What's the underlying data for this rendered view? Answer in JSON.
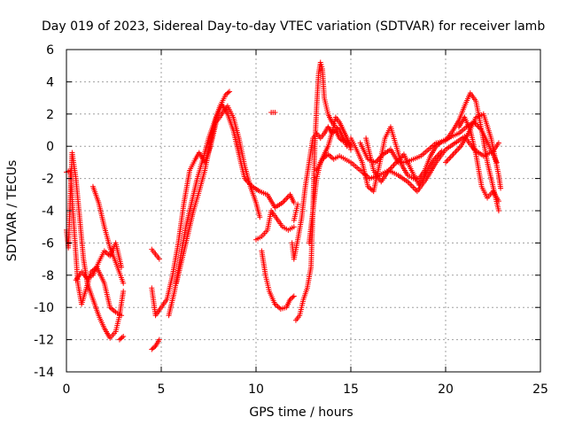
{
  "chart_data": {
    "type": "scatter",
    "title": "Day 019 of 2023, Sidereal Day-to-day VTEC variation (SDTVAR) for receiver lamb",
    "xlabel": "GPS time / hours",
    "ylabel": "SDTVAR / TECUs",
    "xlim": [
      0,
      25
    ],
    "ylim": [
      -14,
      6
    ],
    "xticks": [
      0,
      5,
      10,
      15,
      20,
      25
    ],
    "yticks": [
      -14,
      -12,
      -10,
      -8,
      -6,
      -4,
      -2,
      0,
      2,
      4,
      6
    ],
    "grid": true,
    "marker": "+",
    "color": "#ff0000",
    "series": [
      {
        "name": "track-1",
        "points": [
          [
            0.0,
            -1.6
          ],
          [
            0.2,
            -1.5
          ],
          [
            0.4,
            -5.0
          ],
          [
            0.6,
            -8.5
          ],
          [
            0.8,
            -9.8
          ],
          [
            1.0,
            -9.0
          ],
          [
            1.3,
            -7.8
          ],
          [
            1.6,
            -7.5
          ],
          [
            2.0,
            -8.5
          ],
          [
            2.3,
            -10.0
          ],
          [
            2.6,
            -10.3
          ],
          [
            2.9,
            -10.5
          ]
        ]
      },
      {
        "name": "track-2",
        "points": [
          [
            0.0,
            -5.2
          ],
          [
            0.1,
            -6.3
          ],
          [
            0.3,
            -0.4
          ],
          [
            0.5,
            -2.0
          ],
          [
            0.7,
            -4.5
          ],
          [
            0.9,
            -7.0
          ],
          [
            1.1,
            -8.5
          ],
          [
            1.4,
            -9.5
          ],
          [
            1.7,
            -10.5
          ],
          [
            2.0,
            -11.3
          ],
          [
            2.3,
            -11.9
          ],
          [
            2.6,
            -11.5
          ],
          [
            2.8,
            -10.5
          ],
          [
            3.0,
            -9.0
          ]
        ]
      },
      {
        "name": "track-3",
        "points": [
          [
            1.4,
            -2.5
          ],
          [
            1.7,
            -3.5
          ],
          [
            2.0,
            -5.0
          ],
          [
            2.3,
            -6.3
          ],
          [
            2.6,
            -7.2
          ],
          [
            3.0,
            -8.5
          ]
        ]
      },
      {
        "name": "track-4",
        "points": [
          [
            0.5,
            -8.3
          ],
          [
            0.8,
            -7.8
          ],
          [
            1.1,
            -8.2
          ],
          [
            1.4,
            -8.0
          ],
          [
            1.7,
            -7.2
          ],
          [
            2.0,
            -6.5
          ],
          [
            2.3,
            -6.8
          ],
          [
            2.6,
            -6.0
          ],
          [
            2.9,
            -7.5
          ]
        ]
      },
      {
        "name": "track-5",
        "points": [
          [
            2.8,
            -12.0
          ],
          [
            3.0,
            -11.8
          ]
        ]
      },
      {
        "name": "track-6",
        "points": [
          [
            4.5,
            -12.6
          ],
          [
            4.7,
            -12.4
          ],
          [
            4.9,
            -12.0
          ]
        ]
      },
      {
        "name": "track-7",
        "points": [
          [
            4.5,
            -6.4
          ],
          [
            4.7,
            -6.7
          ],
          [
            4.9,
            -7.0
          ]
        ]
      },
      {
        "name": "track-8",
        "points": [
          [
            4.5,
            -8.8
          ],
          [
            4.7,
            -10.5
          ],
          [
            5.0,
            -10.0
          ],
          [
            5.3,
            -9.5
          ],
          [
            5.6,
            -8.0
          ],
          [
            5.9,
            -6.0
          ],
          [
            6.2,
            -3.5
          ],
          [
            6.5,
            -1.5
          ],
          [
            6.8,
            -0.8
          ],
          [
            7.0,
            -0.4
          ],
          [
            7.3,
            -1.0
          ],
          [
            7.6,
            0.0
          ],
          [
            7.9,
            1.5
          ],
          [
            8.2,
            2.0
          ],
          [
            8.5,
            2.5
          ],
          [
            8.8,
            1.8
          ],
          [
            9.1,
            0.5
          ],
          [
            9.4,
            -1.2
          ],
          [
            9.7,
            -2.5
          ],
          [
            10.0,
            -3.5
          ],
          [
            10.2,
            -4.4
          ]
        ]
      },
      {
        "name": "track-9",
        "points": [
          [
            5.4,
            -10.5
          ],
          [
            5.7,
            -9.0
          ],
          [
            6.0,
            -7.0
          ],
          [
            6.3,
            -5.0
          ],
          [
            6.6,
            -3.5
          ],
          [
            6.9,
            -2.0
          ],
          [
            7.2,
            -0.8
          ],
          [
            7.5,
            0.5
          ],
          [
            7.8,
            1.5
          ],
          [
            8.1,
            2.5
          ],
          [
            8.4,
            3.2
          ],
          [
            8.6,
            3.4
          ]
        ]
      },
      {
        "name": "track-10",
        "points": [
          [
            5.8,
            -8.5
          ],
          [
            6.1,
            -7.0
          ],
          [
            6.4,
            -5.5
          ],
          [
            6.7,
            -4.0
          ],
          [
            7.0,
            -2.8
          ],
          [
            7.3,
            -1.5
          ],
          [
            7.6,
            0.2
          ],
          [
            7.9,
            1.8
          ],
          [
            8.2,
            2.6
          ],
          [
            8.5,
            2.0
          ],
          [
            8.8,
            1.0
          ],
          [
            9.1,
            -0.5
          ],
          [
            9.4,
            -2.0
          ],
          [
            9.8,
            -2.5
          ],
          [
            10.2,
            -2.8
          ],
          [
            10.6,
            -3.0
          ],
          [
            11.0,
            -3.8
          ],
          [
            11.4,
            -3.5
          ],
          [
            11.8,
            -3.0
          ],
          [
            12.0,
            -3.5
          ]
        ]
      },
      {
        "name": "track-11",
        "points": [
          [
            10.0,
            -5.8
          ],
          [
            10.3,
            -5.6
          ],
          [
            10.6,
            -5.2
          ],
          [
            10.8,
            -4.0
          ],
          [
            11.1,
            -4.5
          ],
          [
            11.4,
            -5.0
          ],
          [
            11.7,
            -5.2
          ],
          [
            12.0,
            -5.0
          ]
        ]
      },
      {
        "name": "track-12",
        "points": [
          [
            10.3,
            -6.5
          ],
          [
            10.5,
            -8.0
          ],
          [
            10.7,
            -9.0
          ],
          [
            11.0,
            -9.8
          ],
          [
            11.3,
            -10.1
          ],
          [
            11.6,
            -10.0
          ],
          [
            11.8,
            -9.5
          ],
          [
            12.0,
            -9.3
          ]
        ]
      },
      {
        "name": "track-13",
        "points": [
          [
            10.8,
            2.1
          ],
          [
            11.0,
            2.1
          ]
        ]
      },
      {
        "name": "track-14",
        "points": [
          [
            11.9,
            -6.0
          ],
          [
            12.0,
            -7.0
          ],
          [
            12.2,
            -5.8
          ],
          [
            12.4,
            -4.5
          ],
          [
            12.6,
            -2.5
          ],
          [
            12.8,
            -1.0
          ],
          [
            13.0,
            0.5
          ],
          [
            13.2,
            0.8
          ],
          [
            13.4,
            0.5
          ],
          [
            13.6,
            0.8
          ],
          [
            13.8,
            1.2
          ],
          [
            14.0,
            0.8
          ],
          [
            14.2,
            1.0
          ],
          [
            14.4,
            0.5
          ],
          [
            14.6,
            0.3
          ],
          [
            14.8,
            0.4
          ],
          [
            15.0,
            0.0
          ]
        ]
      },
      {
        "name": "track-15",
        "points": [
          [
            12.0,
            -4.6
          ],
          [
            12.2,
            -3.6
          ]
        ]
      },
      {
        "name": "track-16",
        "points": [
          [
            12.1,
            -10.8
          ],
          [
            12.3,
            -10.5
          ],
          [
            12.5,
            -9.5
          ],
          [
            12.7,
            -8.8
          ],
          [
            12.9,
            -7.5
          ],
          [
            13.0,
            -4.0
          ],
          [
            13.1,
            0.0
          ],
          [
            13.2,
            2.5
          ],
          [
            13.3,
            4.5
          ],
          [
            13.4,
            5.2
          ],
          [
            13.5,
            4.8
          ],
          [
            13.6,
            3.0
          ],
          [
            13.8,
            2.0
          ],
          [
            14.0,
            1.5
          ],
          [
            14.2,
            1.2
          ],
          [
            14.4,
            1.0
          ],
          [
            14.6,
            0.5
          ],
          [
            14.8,
            0.0
          ]
        ]
      },
      {
        "name": "track-17",
        "points": [
          [
            12.8,
            -6.0
          ],
          [
            13.0,
            -4.0
          ],
          [
            13.2,
            -2.0
          ],
          [
            13.4,
            -1.0
          ],
          [
            13.6,
            -0.5
          ],
          [
            13.8,
            0.0
          ],
          [
            14.0,
            0.8
          ],
          [
            14.2,
            1.8
          ],
          [
            14.4,
            1.5
          ],
          [
            14.6,
            1.0
          ],
          [
            14.8,
            0.5
          ],
          [
            15.0,
            -0.2
          ]
        ]
      },
      {
        "name": "track-18",
        "points": [
          [
            13.2,
            -1.5
          ],
          [
            13.5,
            -0.8
          ],
          [
            13.8,
            -0.5
          ],
          [
            14.1,
            -0.8
          ],
          [
            14.4,
            -0.6
          ],
          [
            14.7,
            -0.8
          ],
          [
            15.0,
            -1.0
          ],
          [
            15.5,
            -1.5
          ],
          [
            16.0,
            -2.0
          ],
          [
            16.5,
            -1.8
          ],
          [
            17.0,
            -1.5
          ],
          [
            17.5,
            -1.8
          ],
          [
            18.0,
            -2.2
          ],
          [
            18.5,
            -2.8
          ],
          [
            19.0,
            -2.0
          ],
          [
            19.5,
            -1.0
          ],
          [
            20.0,
            -0.2
          ],
          [
            20.5,
            0.2
          ],
          [
            21.0,
            0.6
          ],
          [
            21.5,
            -0.2
          ],
          [
            22.0,
            -0.6
          ],
          [
            22.5,
            -0.3
          ],
          [
            22.8,
            0.2
          ]
        ]
      },
      {
        "name": "track-19",
        "points": [
          [
            15.0,
            0.5
          ],
          [
            15.3,
            -0.2
          ],
          [
            15.6,
            -1.0
          ],
          [
            15.9,
            -2.5
          ],
          [
            16.2,
            -2.8
          ],
          [
            16.5,
            -1.2
          ],
          [
            16.8,
            0.5
          ],
          [
            17.1,
            1.2
          ],
          [
            17.4,
            0.0
          ],
          [
            17.7,
            -1.2
          ],
          [
            18.0,
            -1.8
          ],
          [
            18.3,
            -2.0
          ],
          [
            18.6,
            -2.0
          ],
          [
            18.9,
            -1.5
          ],
          [
            19.2,
            -0.6
          ],
          [
            19.5,
            0.0
          ],
          [
            19.8,
            0.3
          ],
          [
            20.1,
            0.5
          ],
          [
            20.4,
            1.0
          ],
          [
            20.7,
            1.6
          ],
          [
            21.0,
            2.5
          ],
          [
            21.3,
            3.3
          ],
          [
            21.6,
            2.8
          ],
          [
            21.9,
            1.0
          ],
          [
            22.2,
            -1.0
          ],
          [
            22.5,
            -2.5
          ],
          [
            22.8,
            -4.0
          ]
        ]
      },
      {
        "name": "track-20",
        "points": [
          [
            15.5,
            0.2
          ],
          [
            15.9,
            -0.8
          ],
          [
            16.3,
            -1.0
          ],
          [
            16.7,
            -0.5
          ],
          [
            17.1,
            -0.2
          ],
          [
            17.5,
            -1.0
          ],
          [
            17.9,
            -1.0
          ],
          [
            18.3,
            -0.8
          ],
          [
            18.7,
            -0.6
          ],
          [
            19.1,
            -0.2
          ],
          [
            19.5,
            0.2
          ],
          [
            19.9,
            0.3
          ],
          [
            20.3,
            0.6
          ],
          [
            20.7,
            0.8
          ],
          [
            21.1,
            1.2
          ],
          [
            21.5,
            1.5
          ],
          [
            21.9,
            1.0
          ],
          [
            22.3,
            0.0
          ],
          [
            22.7,
            -1.0
          ]
        ]
      },
      {
        "name": "track-21",
        "points": [
          [
            20.0,
            -1.0
          ],
          [
            20.4,
            -0.5
          ],
          [
            20.8,
            0.0
          ],
          [
            21.2,
            0.8
          ],
          [
            21.6,
            1.8
          ],
          [
            22.0,
            2.0
          ],
          [
            22.4,
            0.5
          ],
          [
            22.8,
            -1.8
          ],
          [
            22.9,
            -2.6
          ]
        ]
      },
      {
        "name": "track-22",
        "points": [
          [
            15.8,
            0.5
          ],
          [
            16.2,
            -1.5
          ],
          [
            16.6,
            -2.2
          ],
          [
            17.0,
            -1.5
          ],
          [
            17.4,
            -1.0
          ],
          [
            17.8,
            -0.5
          ],
          [
            18.2,
            -1.5
          ],
          [
            18.6,
            -2.4
          ],
          [
            19.0,
            -1.6
          ],
          [
            19.4,
            -0.8
          ],
          [
            19.8,
            -0.3
          ]
        ]
      },
      {
        "name": "track-23",
        "points": [
          [
            20.7,
            1.2
          ],
          [
            21.0,
            1.8
          ],
          [
            21.3,
            1.0
          ],
          [
            21.6,
            -0.5
          ],
          [
            21.9,
            -2.5
          ],
          [
            22.2,
            -3.2
          ],
          [
            22.5,
            -2.8
          ],
          [
            22.8,
            -3.4
          ]
        ]
      }
    ]
  }
}
